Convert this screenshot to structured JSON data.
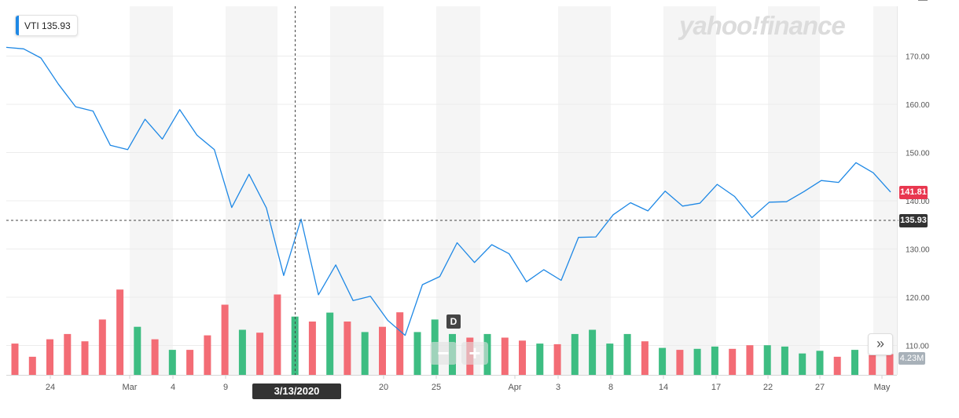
{
  "legend": {
    "label": "VTI 135.93",
    "swatch_color": "#1e88e5"
  },
  "watermark": "yahoo!finance",
  "current_price_tag": "141.81",
  "crosshair_price_tag": "135.93",
  "crosshair_date_tag": "3/13/2020",
  "volume_tag": "4.23M",
  "period_badge": "D",
  "zoom_out_label": "−",
  "zoom_in_label": "+",
  "expand_label": "»",
  "colors": {
    "line": "#1e88e5",
    "up_volume": "#3dbd82",
    "down_volume": "#f36c75",
    "current_tag": "#e8374f",
    "band": "#f5f5f5"
  },
  "chart_data": {
    "type": "line",
    "title": "",
    "ticker": "VTI",
    "y_ticks": [
      "170.00",
      "160.00",
      "150.00",
      "140.00",
      "130.00",
      "120.00",
      "110.00"
    ],
    "y_tick_values": [
      170,
      160,
      150,
      140,
      130,
      120,
      110
    ],
    "ylim": [
      104.6,
      181.0
    ],
    "x_tick_labels": [
      "24",
      "Mar",
      "4",
      "9",
      "20",
      "25",
      "Apr",
      "3",
      "8",
      "14",
      "17",
      "22",
      "27",
      "May"
    ],
    "grid": true,
    "legend_position": "top-left",
    "crosshair": {
      "date": "3/13/2020",
      "value": 135.93
    },
    "current_value": 141.81,
    "series": [
      {
        "name": "VTI",
        "values": [
          171.8,
          171.5,
          169.6,
          164.2,
          159.5,
          158.6,
          151.5,
          150.6,
          156.9,
          152.8,
          158.9,
          153.6,
          150.6,
          138.6,
          145.5,
          138.5,
          124.5,
          136.2,
          120.5,
          126.7,
          119.3,
          120.2,
          115.2,
          112.1,
          122.6,
          124.3,
          131.3,
          127.2,
          130.9,
          129.0,
          123.2,
          125.7,
          123.5,
          132.4,
          132.5,
          137.1,
          139.6,
          137.9,
          142.0,
          138.9,
          139.5,
          143.4,
          140.9,
          136.5,
          139.7,
          139.8,
          141.9,
          144.2,
          143.8,
          147.9,
          145.8,
          141.8
        ]
      }
    ],
    "volume": {
      "unit": "M",
      "values": [
        9.5,
        5.5,
        10.8,
        12.4,
        10.2,
        16.8,
        25.9,
        14.6,
        10.8,
        7.6,
        7.6,
        12.0,
        21.3,
        13.7,
        12.8,
        24.4,
        17.7,
        16.2,
        18.9,
        16.2,
        13.0,
        14.6,
        19.0,
        13.0,
        16.8,
        12.4,
        11.3,
        12.4,
        11.3,
        10.4,
        9.5,
        9.3,
        12.4,
        13.7,
        9.5,
        12.4,
        10.2,
        8.2,
        7.6,
        7.9,
        8.6,
        7.9,
        9.0,
        9.0,
        8.6,
        6.5,
        7.3,
        5.5,
        7.6,
        6.0,
        6.3
      ],
      "direction": [
        "down",
        "down",
        "down",
        "down",
        "down",
        "down",
        "down",
        "up",
        "down",
        "up",
        "down",
        "down",
        "down",
        "up",
        "down",
        "down",
        "up",
        "down",
        "up",
        "down",
        "up",
        "down",
        "down",
        "up",
        "up",
        "up",
        "down",
        "up",
        "down",
        "down",
        "up",
        "down",
        "up",
        "up",
        "up",
        "up",
        "down",
        "up",
        "down",
        "up",
        "up",
        "down",
        "down",
        "up",
        "up",
        "up",
        "up",
        "down",
        "up",
        "down",
        "down"
      ]
    }
  }
}
